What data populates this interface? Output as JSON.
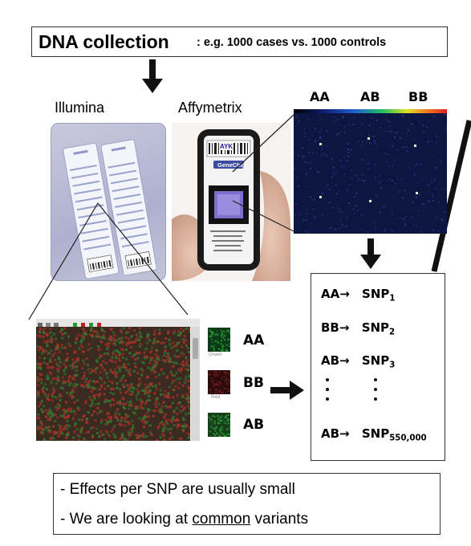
{
  "title_box": {
    "main": "DNA collection",
    "sub": ": e.g. 1000 cases vs. 1000 controls"
  },
  "platforms": {
    "illumina": "Illumina",
    "affymetrix": "Affymetrix"
  },
  "chip": {
    "brand": "GeneChip",
    "logo": "AYK"
  },
  "scan_labels": [
    "AA",
    "AB",
    "BB"
  ],
  "genotype_legend": [
    {
      "label": "AA",
      "caption": "Green",
      "color": "#1d7a2a"
    },
    {
      "label": "BB",
      "caption": "Red",
      "color": "#7a1a1a"
    },
    {
      "label": "AB",
      "caption": "",
      "color": "#2c7030"
    }
  ],
  "snp_table": [
    {
      "geno": "AA",
      "arrow": "→",
      "snp": "SNP",
      "idx": "1"
    },
    {
      "geno": "BB",
      "arrow": "→",
      "snp": "SNP",
      "idx": "2"
    },
    {
      "geno": "AB",
      "arrow": "→",
      "snp": "SNP",
      "idx": "3"
    },
    {
      "geno": "AB",
      "arrow": "→",
      "snp": "SNP",
      "idx": "550,000"
    }
  ],
  "notes": [
    {
      "text_before": "- Effects per SNP are usually small",
      "underlined": "",
      "text_after": ""
    },
    {
      "text_before": "- We are looking at ",
      "underlined": "common",
      "text_after": " variants"
    }
  ],
  "colors": {
    "scan_bg": "#0d1640",
    "speckle_red": "#a8322a",
    "speckle_green": "#2f7a30"
  }
}
